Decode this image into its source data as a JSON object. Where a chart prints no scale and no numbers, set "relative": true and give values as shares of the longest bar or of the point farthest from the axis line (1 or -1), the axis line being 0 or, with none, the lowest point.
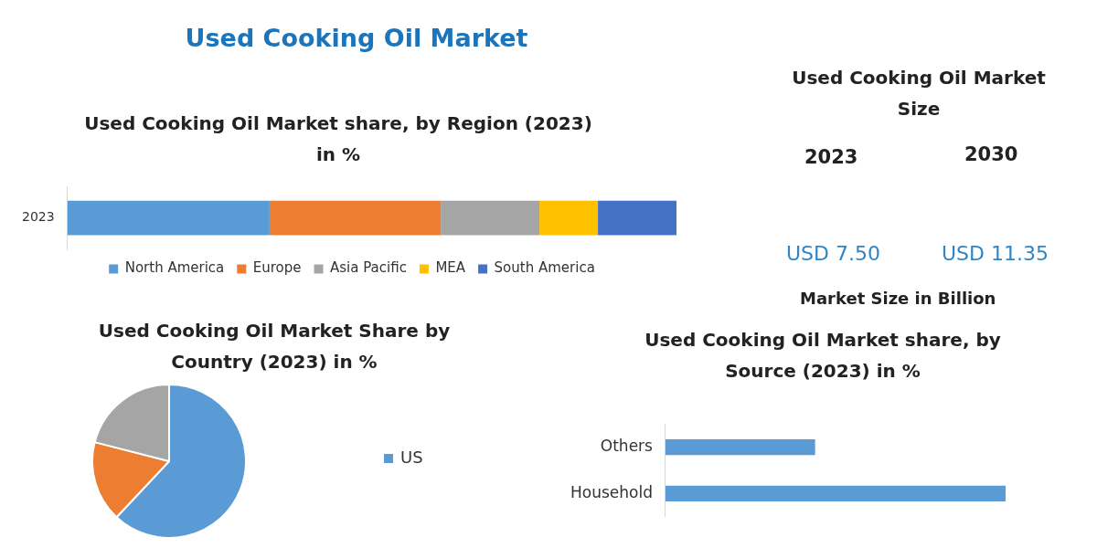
{
  "chart_data": [
    {
      "type": "other",
      "title": "Used Cooking Oil Market"
    },
    {
      "type": "bar",
      "title": "Used Cooking Oil Market share, by Region (2023) in %",
      "orientation": "horizontal",
      "stacked": true,
      "relative": true,
      "legend": "bottom",
      "categories": [
        "2023"
      ],
      "series": [
        {
          "name": "North America",
          "color": "#5b9bd5",
          "values": [
            0.332
          ]
        },
        {
          "name": "Europe",
          "color": "#ed7d31",
          "values": [
            0.281
          ]
        },
        {
          "name": "Asia Pacific",
          "color": "#a5a5a5",
          "values": [
            0.162
          ]
        },
        {
          "name": "MEA",
          "color": "#ffc000",
          "values": [
            0.096
          ]
        },
        {
          "name": "South America",
          "color": "#4472c4",
          "values": [
            0.129
          ]
        }
      ]
    },
    {
      "type": "other",
      "title": "Used Cooking Oil Market Size",
      "annotations": [
        "2023",
        "2030",
        "USD 7.50",
        "USD 11.35",
        "Market Size in Billion"
      ]
    },
    {
      "type": "pie",
      "title": "Used Cooking Oil Market Share by Country (2023) in %",
      "legend": "right",
      "categories": [
        "US",
        null,
        null
      ],
      "values": [
        62,
        17,
        21
      ],
      "colors": [
        "#5b9bd5",
        "#ed7d31",
        "#a5a5a5"
      ]
    },
    {
      "type": "bar",
      "title": "Used Cooking Oil Market share, by Source (2023) in %",
      "orientation": "horizontal",
      "relative": true,
      "categories": [
        "Others",
        "Household"
      ],
      "values": [
        0.44,
        1
      ],
      "color": "#5b9bd5"
    }
  ]
}
